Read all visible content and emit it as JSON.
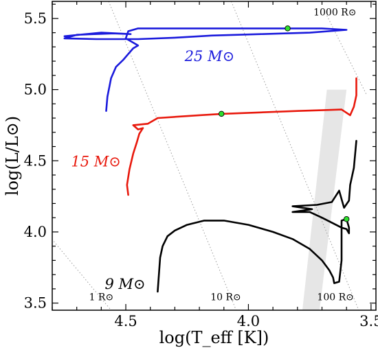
{
  "chart_data": {
    "type": "line",
    "title": "",
    "xlabel": "log(T_eff [K])",
    "ylabel": "log(L/L⊙)",
    "xlim": [
      4.8,
      3.48
    ],
    "ylim": [
      3.45,
      5.62
    ],
    "x_inverted": true,
    "x_ticks": [
      4.5,
      4.0,
      3.5
    ],
    "x_tick_labels": [
      "4.5",
      "4.0",
      "3.5"
    ],
    "y_ticks": [
      3.5,
      4.0,
      4.5,
      5.0,
      5.5
    ],
    "y_tick_labels": [
      "3.5",
      "4.0",
      "4.5",
      "5.0",
      "5.5"
    ],
    "grid": false,
    "radius_lines": [
      {
        "label": "1 R⊙",
        "points": [
          [
            4.85,
            4.05
          ],
          [
            4.56,
            3.45
          ]
        ]
      },
      {
        "label": "10 R⊙",
        "points": [
          [
            4.57,
            5.62
          ],
          [
            4.05,
            3.45
          ]
        ]
      },
      {
        "label": "100 R⊙",
        "points": [
          [
            4.07,
            5.62
          ],
          [
            3.55,
            3.45
          ]
        ]
      },
      {
        "label": "1000 R⊙",
        "points": [
          [
            3.68,
            5.52
          ],
          [
            3.52,
            4.97
          ]
        ]
      }
    ],
    "shaded_band": {
      "color": "#e6e6e6",
      "polygon": [
        [
          3.68,
          5.0
        ],
        [
          3.6,
          5.0
        ],
        [
          3.71,
          3.45
        ],
        [
          3.78,
          3.45
        ]
      ]
    },
    "series": [
      {
        "name": "25 M⊙",
        "color": "#1a1adc",
        "points": [
          [
            4.58,
            4.85
          ],
          [
            4.575,
            4.95
          ],
          [
            4.56,
            5.08
          ],
          [
            4.54,
            5.16
          ],
          [
            4.51,
            5.21
          ],
          [
            4.49,
            5.25
          ],
          [
            4.47,
            5.29
          ],
          [
            4.45,
            5.31
          ],
          [
            4.47,
            5.33
          ],
          [
            4.5,
            5.36
          ],
          [
            4.49,
            5.41
          ],
          [
            4.45,
            5.43
          ],
          [
            4.35,
            5.43
          ],
          [
            4.2,
            5.43
          ],
          [
            4.0,
            5.43
          ],
          [
            3.85,
            5.43
          ],
          [
            3.7,
            5.43
          ],
          [
            3.6,
            5.42
          ],
          [
            3.75,
            5.4
          ],
          [
            3.95,
            5.39
          ],
          [
            4.15,
            5.38
          ],
          [
            4.3,
            5.365
          ],
          [
            4.45,
            5.355
          ],
          [
            4.62,
            5.355
          ],
          [
            4.75,
            5.36
          ],
          [
            4.7,
            5.385
          ],
          [
            4.55,
            5.395
          ],
          [
            4.48,
            5.39
          ],
          [
            4.6,
            5.4
          ],
          [
            4.75,
            5.375
          ]
        ]
      },
      {
        "name": "15 M⊙",
        "color": "#e8180c",
        "points": [
          [
            4.49,
            4.26
          ],
          [
            4.495,
            4.33
          ],
          [
            4.485,
            4.44
          ],
          [
            4.47,
            4.55
          ],
          [
            4.455,
            4.63
          ],
          [
            4.445,
            4.69
          ],
          [
            4.43,
            4.73
          ],
          [
            4.45,
            4.72
          ],
          [
            4.47,
            4.75
          ],
          [
            4.41,
            4.76
          ],
          [
            4.37,
            4.8
          ],
          [
            4.2,
            4.82
          ],
          [
            4.1,
            4.83
          ],
          [
            3.95,
            4.84
          ],
          [
            3.8,
            4.85
          ],
          [
            3.7,
            4.855
          ],
          [
            3.62,
            4.86
          ],
          [
            3.585,
            4.82
          ],
          [
            3.57,
            4.88
          ],
          [
            3.56,
            4.96
          ],
          [
            3.56,
            5.08
          ]
        ]
      },
      {
        "name": "9 M⊙",
        "color": "#000000",
        "points": [
          [
            4.37,
            3.58
          ],
          [
            4.365,
            3.7
          ],
          [
            4.36,
            3.82
          ],
          [
            4.35,
            3.9
          ],
          [
            4.33,
            3.97
          ],
          [
            4.3,
            4.01
          ],
          [
            4.25,
            4.05
          ],
          [
            4.18,
            4.08
          ],
          [
            4.1,
            4.08
          ],
          [
            4.0,
            4.05
          ],
          [
            3.9,
            4.0
          ],
          [
            3.82,
            3.95
          ],
          [
            3.75,
            3.88
          ],
          [
            3.7,
            3.8
          ],
          [
            3.67,
            3.73
          ],
          [
            3.655,
            3.68
          ],
          [
            3.65,
            3.64
          ],
          [
            3.63,
            3.65
          ],
          [
            3.62,
            3.8
          ],
          [
            3.62,
            3.96
          ],
          [
            3.62,
            4.08
          ],
          [
            3.6,
            4.09
          ],
          [
            3.59,
            4.03
          ],
          [
            3.59,
            3.99
          ],
          [
            3.6,
            4.02
          ],
          [
            3.62,
            4.03
          ],
          [
            3.7,
            4.1
          ],
          [
            3.75,
            4.14
          ],
          [
            3.82,
            4.14
          ],
          [
            3.74,
            4.16
          ],
          [
            3.82,
            4.18
          ],
          [
            3.72,
            4.19
          ],
          [
            3.66,
            4.21
          ],
          [
            3.63,
            4.29
          ],
          [
            3.62,
            4.23
          ],
          [
            3.61,
            4.17
          ],
          [
            3.59,
            4.22
          ],
          [
            3.585,
            4.33
          ],
          [
            3.57,
            4.45
          ],
          [
            3.56,
            4.64
          ]
        ]
      }
    ],
    "markers": [
      {
        "x": 3.84,
        "y": 5.43,
        "color": "#2ee02e"
      },
      {
        "x": 4.11,
        "y": 4.83,
        "color": "#2ee02e"
      },
      {
        "x": 3.6,
        "y": 4.09,
        "color": "#2ee02e"
      }
    ],
    "mass_labels": [
      {
        "series": 0,
        "text": "25 M⊙",
        "x": 4.26,
        "y": 5.2,
        "anchor": "start"
      },
      {
        "series": 1,
        "text": "15 M⊙",
        "x": 4.52,
        "y": 4.46,
        "anchor": "end"
      },
      {
        "series": 2,
        "text": "9 M⊙",
        "x": 4.42,
        "y": 3.6,
        "anchor": "end"
      }
    ],
    "radius_label_positions": [
      {
        "text": "1 R⊙",
        "x": 4.55,
        "y": 3.52
      },
      {
        "text": "10 R⊙",
        "x": 4.03,
        "y": 3.52
      },
      {
        "text": "100 R⊙",
        "x": 3.57,
        "y": 3.52
      },
      {
        "text": "1000 R⊙",
        "x": 3.56,
        "y": 5.52
      }
    ]
  }
}
